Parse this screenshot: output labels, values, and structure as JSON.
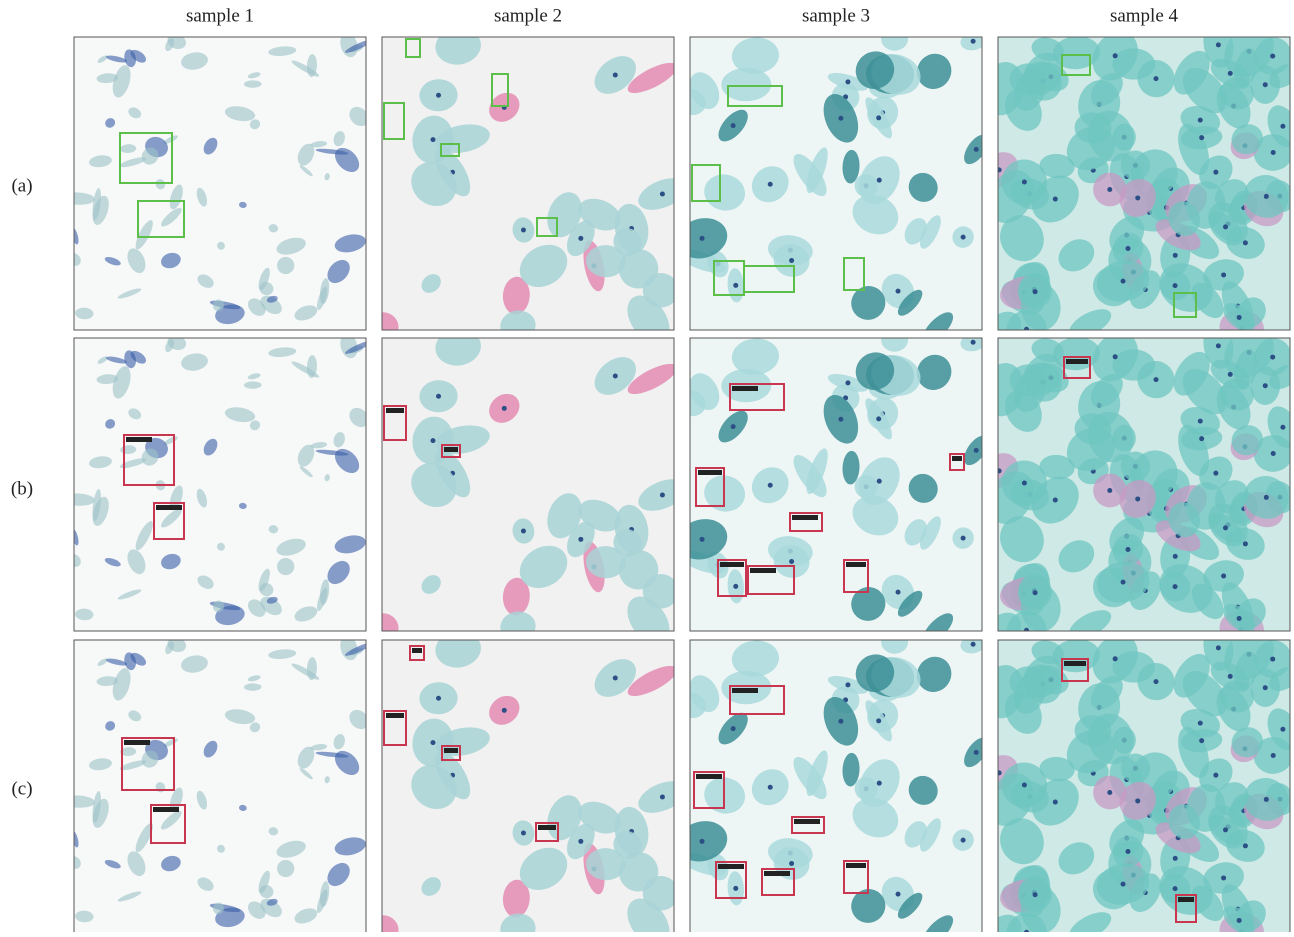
{
  "figure": {
    "columns": [
      "sample 1",
      "sample 2",
      "sample 3",
      "sample 4"
    ],
    "rows": [
      "(a)",
      "(b)",
      "(c)"
    ]
  }
}
